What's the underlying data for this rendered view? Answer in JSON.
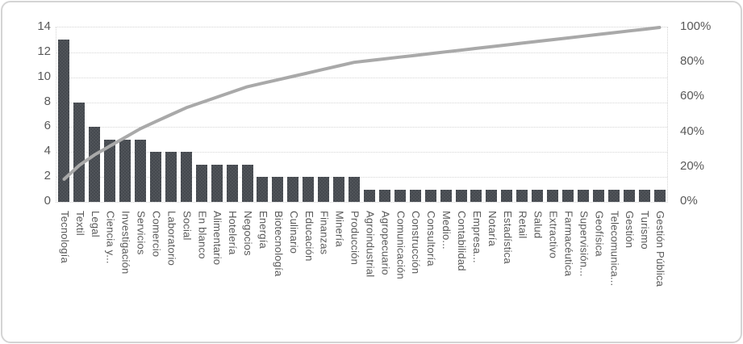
{
  "chart_data": {
    "type": "bar",
    "subtype": "pareto-combo-bar-line",
    "title": "",
    "xlabel": "",
    "ylabel": "",
    "grid": true,
    "legend_position": "none",
    "categories": [
      "Tecnología",
      "Textil",
      "Legal",
      "Ciencia y...",
      "Investigación",
      "Servicios",
      "Comercio",
      "Laboratorio",
      "Social",
      "En blanco",
      "Alimentario",
      "Hotelería",
      "Negocios",
      "Energía",
      "Biotecnología",
      "Culinario",
      "Educación",
      "Finanzas",
      "Minería",
      "Producción",
      "Agroindustrial",
      "Agropecuario",
      "Comunicación",
      "Construcción",
      "Consultoría",
      "Medio...",
      "Contabilidad",
      "Empresa...",
      "Notaría",
      "Estadística",
      "Retail",
      "Salud",
      "Extractivo",
      "Farmacéutica",
      "Supervisión...",
      "Geofísica",
      "Telecomunica...",
      "Gestión",
      "Turismo",
      "Gestión Pública"
    ],
    "series": [
      {
        "name": "frequency-bars",
        "type": "bar",
        "axis": "left",
        "values": [
          13,
          8,
          6,
          5,
          5,
          5,
          4,
          4,
          4,
          3,
          3,
          3,
          3,
          2,
          2,
          2,
          2,
          2,
          2,
          2,
          1,
          1,
          1,
          1,
          1,
          1,
          1,
          1,
          1,
          1,
          1,
          1,
          1,
          1,
          1,
          1,
          1,
          1,
          1,
          1
        ]
      },
      {
        "name": "cumulative-percent-line",
        "type": "line",
        "axis": "right",
        "values": [
          13,
          21,
          27,
          32,
          37,
          42,
          46,
          50,
          54,
          57,
          60,
          63,
          66,
          68,
          70,
          72,
          74,
          76,
          78,
          80,
          81,
          82,
          83,
          84,
          85,
          86,
          87,
          88,
          89,
          90,
          91,
          92,
          93,
          94,
          95,
          96,
          97,
          98,
          99,
          100
        ]
      }
    ],
    "left_axis": {
      "min": 0,
      "max": 14,
      "step": 2,
      "ticks_top_to_bottom": [
        "14",
        "12",
        "10",
        "8",
        "6",
        "4",
        "2",
        "0"
      ]
    },
    "right_axis": {
      "min": 0,
      "max": 100,
      "step": 20,
      "ticks_top_to_bottom": [
        "100%",
        "80%",
        "60%",
        "40%",
        "20%",
        "0%"
      ]
    },
    "colors": {
      "bar": "#45494f",
      "line": "#a9a9a9",
      "axis_text": "#595959",
      "gridline": "#d6d6d6",
      "frame_border": "#d4d4d4",
      "background": "#ffffff"
    }
  }
}
